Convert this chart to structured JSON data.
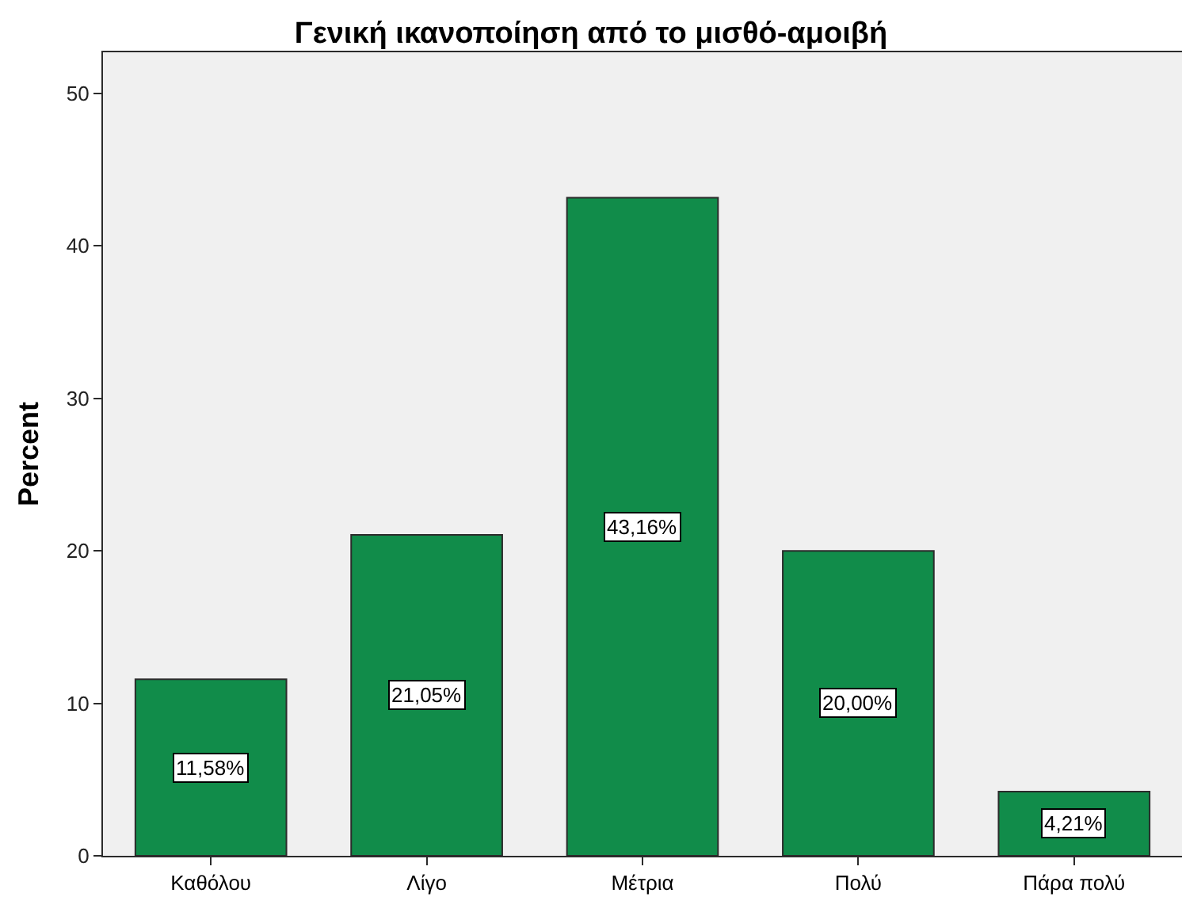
{
  "chart_data": {
    "type": "bar",
    "title": "Γενική ικανοποίηση από το μισθό-αμοιβή",
    "ylabel": "Percent",
    "categories": [
      "Καθόλου",
      "Λίγο",
      "Μέτρια",
      "Πολύ",
      "Πάρα πολύ"
    ],
    "values": [
      11.58,
      21.05,
      43.16,
      20.0,
      4.21
    ],
    "value_labels": [
      "11,58%",
      "21,05%",
      "43,16%",
      "20,00%",
      "4,21%"
    ],
    "color": "#118c4a",
    "ylim": [
      0,
      52.7
    ],
    "yticks": [
      0,
      10,
      20,
      30,
      40,
      50
    ]
  }
}
